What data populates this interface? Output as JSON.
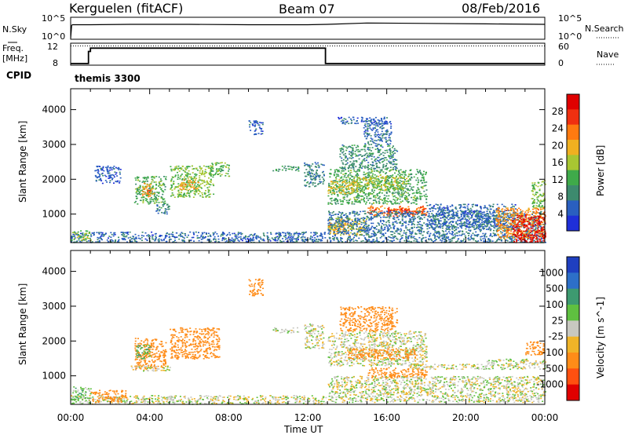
{
  "header": {
    "station": "Kerguelen (fitACF)",
    "beam": "Beam 07",
    "date": "08/Feb/2016"
  },
  "noise_panel": {
    "label_left": "N.Sky",
    "label_right": "N.Search",
    "ticks_left": [
      "10^5",
      "10^0"
    ],
    "ticks_right": [
      "10^5",
      "10^0"
    ]
  },
  "freq_panel": {
    "label_left_line1": "Freq.",
    "label_left_line2": "[MHz]",
    "ticks_left": [
      "12",
      "8"
    ],
    "label_right": "Nave",
    "ticks_right": [
      "60",
      "0"
    ],
    "cpid_label": "CPID",
    "cpid_value": "themis 3300"
  },
  "x_axis": {
    "label": "Time UT",
    "ticks": [
      "00:00",
      "04:00",
      "08:00",
      "12:00",
      "16:00",
      "20:00",
      "00:00"
    ]
  },
  "colors": {
    "power_scale": [
      "#1f2fd8",
      "#2a5fc0",
      "#3d8a6e",
      "#3faa4a",
      "#a8c632",
      "#f0b020",
      "#ff7a10",
      "#f03010",
      "#e00000"
    ],
    "velocity_scale": [
      "#1f3fc0",
      "#2d6fc8",
      "#3d9a70",
      "#5fc040",
      "#c8c8c0",
      "#f0b428",
      "#ff8c18",
      "#ff5010",
      "#e00000"
    ],
    "background": "#ffffff"
  },
  "chart_data": [
    {
      "type": "line",
      "name": "noise",
      "x_unit": "hours UT",
      "xlim": [
        0,
        24
      ],
      "ylim_log10": [
        0,
        5
      ],
      "series": [
        {
          "name": "N.Sky",
          "x": [
            0,
            0.05,
            0.1,
            1,
            3,
            6,
            9,
            12,
            13,
            15,
            18,
            21,
            24
          ],
          "y_log10": [
            0.2,
            3.2,
            3.3,
            3.3,
            3.4,
            3.4,
            3.3,
            3.3,
            3.4,
            3.7,
            3.6,
            3.5,
            3.4
          ]
        }
      ]
    },
    {
      "type": "line",
      "name": "frequency",
      "x_unit": "hours UT",
      "xlim": [
        0,
        24
      ],
      "ylim": [
        8,
        12
      ],
      "series": [
        {
          "name": "Freq.",
          "x": [
            0,
            0.9,
            0.9,
            1,
            1,
            12.9,
            12.9,
            24
          ],
          "y": [
            8.3,
            8.3,
            10.5,
            10.5,
            11.1,
            11.1,
            8.3,
            8.3
          ]
        },
        {
          "name": "Nave",
          "x": [
            0,
            24
          ],
          "y": [
            11.5,
            11.5
          ]
        }
      ]
    },
    {
      "type": "heatmap",
      "name": "power",
      "x_unit": "hours UT",
      "y_label": "Slant Range [km]",
      "colorbar_label": "Power [dB]",
      "xlim": [
        0,
        24
      ],
      "ylim": [
        180,
        4600
      ],
      "y_ticks": [
        1000,
        2000,
        3000,
        4000
      ],
      "colorbar_ticks": [
        4,
        8,
        12,
        16,
        20,
        24,
        28
      ],
      "colorbar_range": [
        0,
        32
      ],
      "regions": [
        {
          "t0": 0,
          "t1": 12.9,
          "r0": 200,
          "r1": 500,
          "v": 6
        },
        {
          "t0": 0,
          "t1": 1.0,
          "r0": 250,
          "r1": 550,
          "v": 15
        },
        {
          "t0": 1.2,
          "t1": 2.5,
          "r0": 1900,
          "r1": 2400,
          "v": 5
        },
        {
          "t0": 3.2,
          "t1": 4.8,
          "r0": 1300,
          "r1": 2100,
          "v": 12
        },
        {
          "t0": 3.6,
          "t1": 4.2,
          "r0": 1500,
          "r1": 1900,
          "v": 20
        },
        {
          "t0": 3.8,
          "t1": 4.0,
          "r0": 1550,
          "r1": 1750,
          "v": 26
        },
        {
          "t0": 4.3,
          "t1": 5.0,
          "r0": 1000,
          "r1": 1300,
          "v": 8
        },
        {
          "t0": 5.0,
          "t1": 7.2,
          "r0": 1500,
          "r1": 2400,
          "v": 14
        },
        {
          "t0": 5.5,
          "t1": 6.5,
          "r0": 1700,
          "r1": 2000,
          "v": 20
        },
        {
          "t0": 7.0,
          "t1": 8.0,
          "r0": 2100,
          "r1": 2500,
          "v": 13
        },
        {
          "t0": 10.2,
          "t1": 11.5,
          "r0": 2250,
          "r1": 2400,
          "v": 10
        },
        {
          "t0": 9.0,
          "t1": 9.7,
          "r0": 3300,
          "r1": 3700,
          "v": 5
        },
        {
          "t0": 11.8,
          "t1": 12.8,
          "r0": 1800,
          "r1": 2500,
          "v": 8
        },
        {
          "t0": 13.0,
          "t1": 18.0,
          "r0": 1300,
          "r1": 2300,
          "v": 12
        },
        {
          "t0": 13.0,
          "t1": 14.5,
          "r0": 1600,
          "r1": 2000,
          "v": 18
        },
        {
          "t0": 14.5,
          "t1": 17.0,
          "r0": 1700,
          "r1": 2100,
          "v": 16
        },
        {
          "t0": 13.6,
          "t1": 16.5,
          "r0": 2300,
          "r1": 3000,
          "v": 9
        },
        {
          "t0": 14.8,
          "t1": 16.2,
          "r0": 3000,
          "r1": 3700,
          "v": 6
        },
        {
          "t0": 13.5,
          "t1": 16.0,
          "r0": 3600,
          "r1": 3800,
          "v": 5
        },
        {
          "t0": 13.0,
          "t1": 15.0,
          "r0": 400,
          "r1": 900,
          "v": 18
        },
        {
          "t0": 13.0,
          "t1": 14.0,
          "r0": 500,
          "r1": 750,
          "v": 20
        },
        {
          "t0": 15.0,
          "t1": 18.0,
          "r0": 950,
          "r1": 1250,
          "v": 24
        },
        {
          "t0": 16.0,
          "t1": 18.0,
          "r0": 1000,
          "r1": 1150,
          "v": 27
        },
        {
          "t0": 13.0,
          "t1": 24.0,
          "r0": 200,
          "r1": 1100,
          "v": 7
        },
        {
          "t0": 18.0,
          "t1": 22.5,
          "r0": 600,
          "r1": 1300,
          "v": 6
        },
        {
          "t0": 21.5,
          "t1": 24.0,
          "r0": 300,
          "r1": 1200,
          "v": 22
        },
        {
          "t0": 22.3,
          "t1": 24.0,
          "r0": 200,
          "r1": 1000,
          "v": 30
        },
        {
          "t0": 23.3,
          "t1": 24.0,
          "r0": 1200,
          "r1": 2000,
          "v": 14
        }
      ]
    },
    {
      "type": "heatmap",
      "name": "velocity",
      "x_unit": "hours UT",
      "y_label": "Slant Range [km]",
      "colorbar_label": "Velocity [m s^-1]",
      "xlim": [
        0,
        24
      ],
      "ylim": [
        180,
        4600
      ],
      "y_ticks": [
        1000,
        2000,
        3000,
        4000
      ],
      "colorbar_ticks": [
        1000,
        500,
        100,
        25,
        -25,
        -100,
        -500,
        -1000
      ],
      "regions": [
        {
          "t0": 0,
          "t1": 12.9,
          "r0": 200,
          "r1": 450,
          "v": 0
        },
        {
          "t0": 0,
          "t1": 1.0,
          "r0": 300,
          "r1": 700,
          "v": 60
        },
        {
          "t0": 1.0,
          "t1": 2.8,
          "r0": 250,
          "r1": 600,
          "v": -200
        },
        {
          "t0": 3.2,
          "t1": 4.8,
          "r0": 1200,
          "r1": 2100,
          "v": -300
        },
        {
          "t0": 3.3,
          "t1": 4.0,
          "r0": 1500,
          "r1": 1900,
          "v": 80
        },
        {
          "t0": 5.0,
          "t1": 7.5,
          "r0": 1500,
          "r1": 2400,
          "v": -350
        },
        {
          "t0": 3.0,
          "t1": 5.0,
          "r0": 1150,
          "r1": 1300,
          "v": 0
        },
        {
          "t0": 9.0,
          "t1": 9.7,
          "r0": 3300,
          "r1": 3800,
          "v": -200
        },
        {
          "t0": 10.2,
          "t1": 11.5,
          "r0": 2250,
          "r1": 2400,
          "v": 0
        },
        {
          "t0": 11.8,
          "t1": 12.8,
          "r0": 1800,
          "r1": 2500,
          "v": 0
        },
        {
          "t0": 13.0,
          "t1": 18.0,
          "r0": 1300,
          "r1": 2300,
          "v": 0
        },
        {
          "t0": 14.0,
          "t1": 17.5,
          "r0": 1500,
          "r1": 1800,
          "v": -300
        },
        {
          "t0": 13.6,
          "t1": 16.5,
          "r0": 2300,
          "r1": 3000,
          "v": -200
        },
        {
          "t0": 15.0,
          "t1": 18.0,
          "r0": 950,
          "r1": 1250,
          "v": -400
        },
        {
          "t0": 13.0,
          "t1": 24.0,
          "r0": 250,
          "r1": 1000,
          "v": 0
        },
        {
          "t0": 17.0,
          "t1": 24.0,
          "r0": 1200,
          "r1": 1350,
          "v": 0
        },
        {
          "t0": 21.0,
          "t1": 24.0,
          "r0": 1350,
          "r1": 1500,
          "v": 0
        },
        {
          "t0": 23.0,
          "t1": 24.0,
          "r0": 1600,
          "r1": 2000,
          "v": -300
        }
      ]
    }
  ]
}
